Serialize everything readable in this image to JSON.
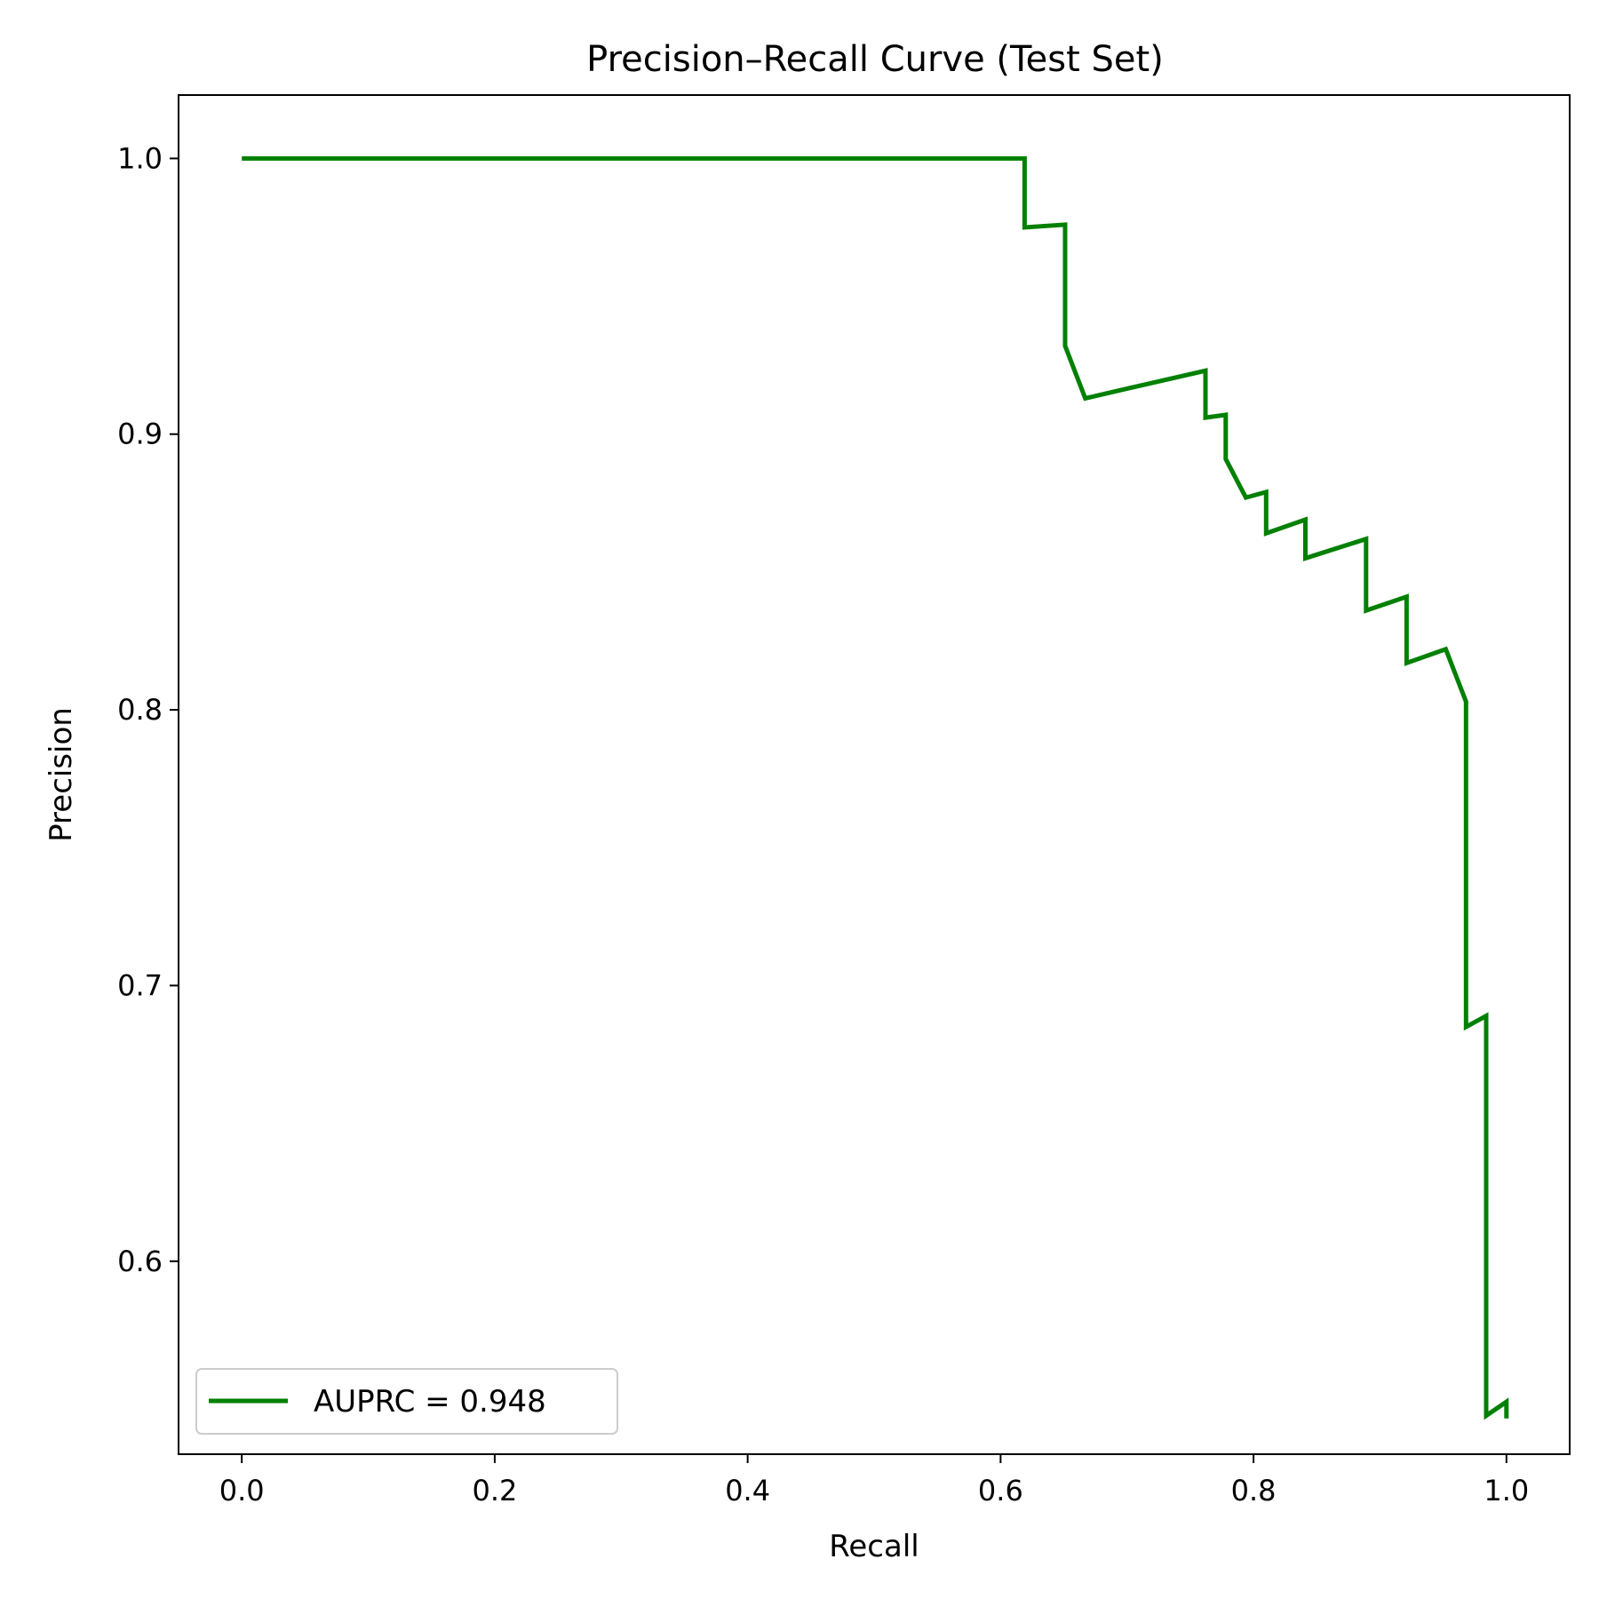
{
  "chart_data": {
    "type": "line",
    "title": "Precision–Recall Curve (Test Set)",
    "xlabel": "Recall",
    "ylabel": "Precision",
    "xlim": [
      -0.05,
      1.05
    ],
    "ylim": [
      0.53,
      1.023
    ],
    "xticks": [
      0.0,
      0.2,
      0.4,
      0.6,
      0.8,
      1.0
    ],
    "xtick_labels": [
      "0.0",
      "0.2",
      "0.4",
      "0.6",
      "0.8",
      "1.0"
    ],
    "yticks": [
      0.6,
      0.7,
      0.8,
      0.9,
      1.0
    ],
    "ytick_labels": [
      "0.6",
      "0.7",
      "0.8",
      "0.9",
      "1.0"
    ],
    "grid": false,
    "legend_position": "lower-left",
    "series": [
      {
        "name": "AUPRC = 0.948",
        "color": "#008000",
        "x": [
          0.0,
          0.619,
          0.619,
          0.651,
          0.651,
          0.667,
          0.714,
          0.762,
          0.762,
          0.778,
          0.778,
          0.794,
          0.81,
          0.81,
          0.841,
          0.841,
          0.889,
          0.889,
          0.921,
          0.921,
          0.952,
          0.968,
          0.968,
          0.984,
          0.984,
          1.0,
          1.0
        ],
        "y": [
          1.0,
          1.0,
          0.975,
          0.976,
          0.932,
          0.913,
          0.918,
          0.923,
          0.906,
          0.907,
          0.891,
          0.877,
          0.879,
          0.864,
          0.869,
          0.855,
          0.862,
          0.836,
          0.841,
          0.817,
          0.822,
          0.803,
          0.685,
          0.689,
          0.544,
          0.549,
          0.543
        ]
      }
    ]
  }
}
